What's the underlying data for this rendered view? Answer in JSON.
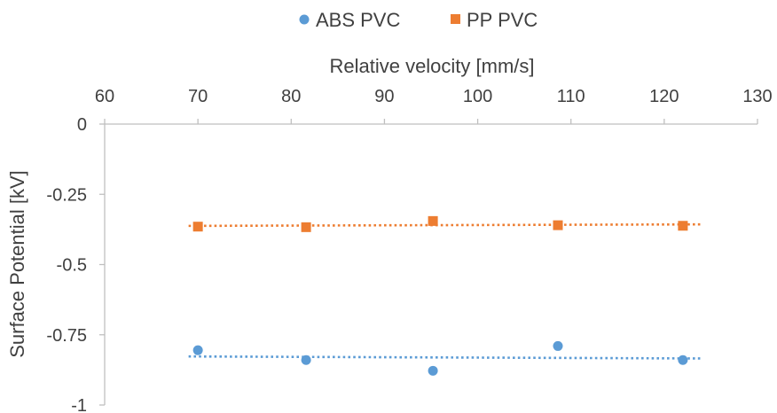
{
  "chart_data": {
    "type": "scatter",
    "xlabel": "Relative velocity [mm/s]",
    "ylabel": "Surface Potential [kV]",
    "xlim": [
      60,
      130
    ],
    "ylim": [
      -1,
      0
    ],
    "x_ticks": [
      60,
      70,
      80,
      90,
      100,
      110,
      120,
      130
    ],
    "y_ticks": [
      0,
      -0.25,
      -0.5,
      -0.75,
      -1
    ],
    "y_tick_labels": [
      "0",
      "-0.25",
      "-0.5",
      "-0.75",
      "-1"
    ],
    "x_axis_position": "top",
    "grid": false,
    "legend_position": "top",
    "series": [
      {
        "name": "ABS PVC",
        "marker": "circle",
        "color": "#5b9bd5",
        "trendline": "linear-dotted",
        "points": [
          [
            70,
            -0.805
          ],
          [
            81.6,
            -0.84
          ],
          [
            95.2,
            -0.878
          ],
          [
            108.6,
            -0.79
          ],
          [
            122,
            -0.84
          ]
        ]
      },
      {
        "name": "PP PVC",
        "marker": "square",
        "color": "#ed7d31",
        "trendline": "linear-dotted",
        "points": [
          [
            70,
            -0.365
          ],
          [
            81.6,
            -0.367
          ],
          [
            95.2,
            -0.345
          ],
          [
            108.6,
            -0.36
          ],
          [
            122,
            -0.362
          ]
        ]
      }
    ]
  }
}
